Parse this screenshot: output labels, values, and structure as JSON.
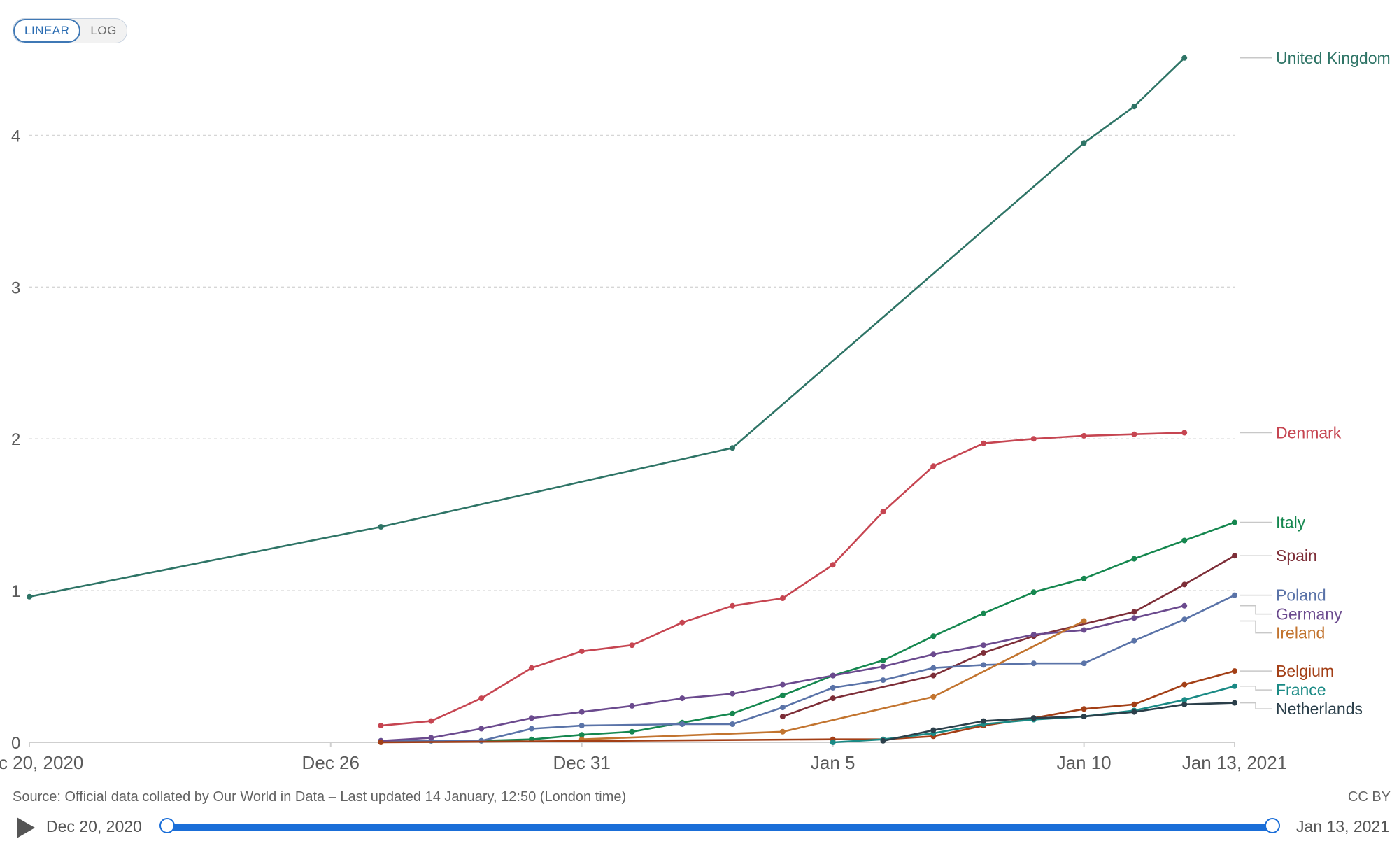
{
  "controls": {
    "linear_label": "LINEAR",
    "log_label": "LOG",
    "active": "linear"
  },
  "source_text": "Source: Official data collated by Our World in Data – Last updated 14 January, 12:50 (London time)",
  "license_text": "CC BY",
  "timeline": {
    "start_label": "Dec 20, 2020",
    "end_label": "Jan 13, 2021"
  },
  "chart_data": {
    "type": "line",
    "title": "",
    "xlabel": "",
    "ylabel": "",
    "x_domain": [
      "2020-12-20",
      "2021-01-13"
    ],
    "ylim": [
      0,
      4.5
    ],
    "y_ticks": [
      0,
      1,
      2,
      3,
      4
    ],
    "grid": "horizontal-dashed",
    "legend": "right-end-labels",
    "x_ticks": [
      {
        "date": "2020-12-20",
        "label": "Dec 20, 2020"
      },
      {
        "date": "2020-12-26",
        "label": "Dec 26"
      },
      {
        "date": "2020-12-31",
        "label": "Dec 31"
      },
      {
        "date": "2021-01-05",
        "label": "Jan 5"
      },
      {
        "date": "2021-01-10",
        "label": "Jan 10"
      },
      {
        "date": "2021-01-13",
        "label": "Jan 13, 2021"
      }
    ],
    "series": [
      {
        "name": "United Kingdom",
        "color": "#2e7466",
        "points": [
          [
            "2020-12-20",
            0.96
          ],
          [
            "2020-12-27",
            1.42
          ],
          [
            "2021-01-03",
            1.94
          ],
          [
            "2021-01-10",
            3.95
          ],
          [
            "2021-01-11",
            4.19
          ],
          [
            "2021-01-12",
            4.51
          ]
        ]
      },
      {
        "name": "Denmark",
        "color": "#c64551",
        "points": [
          [
            "2020-12-27",
            0.11
          ],
          [
            "2020-12-28",
            0.14
          ],
          [
            "2020-12-29",
            0.29
          ],
          [
            "2020-12-30",
            0.49
          ],
          [
            "2020-12-31",
            0.6
          ],
          [
            "2021-01-01",
            0.64
          ],
          [
            "2021-01-02",
            0.79
          ],
          [
            "2021-01-03",
            0.9
          ],
          [
            "2021-01-04",
            0.95
          ],
          [
            "2021-01-05",
            1.17
          ],
          [
            "2021-01-06",
            1.52
          ],
          [
            "2021-01-07",
            1.82
          ],
          [
            "2021-01-08",
            1.97
          ],
          [
            "2021-01-09",
            2.0
          ],
          [
            "2021-01-10",
            2.02
          ],
          [
            "2021-01-11",
            2.03
          ],
          [
            "2021-01-12",
            2.04
          ]
        ]
      },
      {
        "name": "Italy",
        "color": "#15874f",
        "points": [
          [
            "2020-12-27",
            0.01
          ],
          [
            "2020-12-28",
            0.01
          ],
          [
            "2020-12-29",
            0.01
          ],
          [
            "2020-12-30",
            0.02
          ],
          [
            "2020-12-31",
            0.05
          ],
          [
            "2021-01-01",
            0.07
          ],
          [
            "2021-01-02",
            0.13
          ],
          [
            "2021-01-03",
            0.19
          ],
          [
            "2021-01-04",
            0.31
          ],
          [
            "2021-01-05",
            0.44
          ],
          [
            "2021-01-06",
            0.54
          ],
          [
            "2021-01-07",
            0.7
          ],
          [
            "2021-01-08",
            0.85
          ],
          [
            "2021-01-09",
            0.99
          ],
          [
            "2021-01-10",
            1.08
          ],
          [
            "2021-01-11",
            1.21
          ],
          [
            "2021-01-12",
            1.33
          ],
          [
            "2021-01-13",
            1.45
          ]
        ]
      },
      {
        "name": "Spain",
        "color": "#7d2e38",
        "points": [
          [
            "2021-01-04",
            0.17
          ],
          [
            "2021-01-05",
            0.29
          ],
          [
            "2021-01-07",
            0.44
          ],
          [
            "2021-01-08",
            0.59
          ],
          [
            "2021-01-09",
            0.7
          ],
          [
            "2021-01-11",
            0.86
          ],
          [
            "2021-01-12",
            1.04
          ],
          [
            "2021-01-13",
            1.23
          ]
        ]
      },
      {
        "name": "Poland",
        "color": "#5a73a8",
        "points": [
          [
            "2020-12-27",
            0.01
          ],
          [
            "2020-12-28",
            0.01
          ],
          [
            "2020-12-29",
            0.01
          ],
          [
            "2020-12-30",
            0.09
          ],
          [
            "2020-12-31",
            0.11
          ],
          [
            "2021-01-02",
            0.12
          ],
          [
            "2021-01-03",
            0.12
          ],
          [
            "2021-01-04",
            0.23
          ],
          [
            "2021-01-05",
            0.36
          ],
          [
            "2021-01-06",
            0.41
          ],
          [
            "2021-01-07",
            0.49
          ],
          [
            "2021-01-08",
            0.51
          ],
          [
            "2021-01-09",
            0.52
          ],
          [
            "2021-01-10",
            0.52
          ],
          [
            "2021-01-11",
            0.67
          ],
          [
            "2021-01-12",
            0.81
          ],
          [
            "2021-01-13",
            0.97
          ]
        ]
      },
      {
        "name": "Germany",
        "color": "#6b4a8e",
        "points": [
          [
            "2020-12-27",
            0.01
          ],
          [
            "2020-12-28",
            0.03
          ],
          [
            "2020-12-29",
            0.09
          ],
          [
            "2020-12-30",
            0.16
          ],
          [
            "2020-12-31",
            0.2
          ],
          [
            "2021-01-01",
            0.24
          ],
          [
            "2021-01-02",
            0.29
          ],
          [
            "2021-01-03",
            0.32
          ],
          [
            "2021-01-04",
            0.38
          ],
          [
            "2021-01-05",
            0.44
          ],
          [
            "2021-01-06",
            0.5
          ],
          [
            "2021-01-07",
            0.58
          ],
          [
            "2021-01-08",
            0.64
          ],
          [
            "2021-01-09",
            0.71
          ],
          [
            "2021-01-10",
            0.74
          ],
          [
            "2021-01-11",
            0.82
          ],
          [
            "2021-01-12",
            0.9
          ]
        ]
      },
      {
        "name": "Ireland",
        "color": "#c2742f",
        "points": [
          [
            "2020-12-31",
            0.02
          ],
          [
            "2021-01-04",
            0.07
          ],
          [
            "2021-01-07",
            0.3
          ],
          [
            "2021-01-10",
            0.8
          ]
        ]
      },
      {
        "name": "Belgium",
        "color": "#a33f16",
        "points": [
          [
            "2020-12-27",
            0.0
          ],
          [
            "2021-01-05",
            0.02
          ],
          [
            "2021-01-06",
            0.02
          ],
          [
            "2021-01-07",
            0.04
          ],
          [
            "2021-01-08",
            0.11
          ],
          [
            "2021-01-09",
            0.16
          ],
          [
            "2021-01-10",
            0.22
          ],
          [
            "2021-01-11",
            0.25
          ],
          [
            "2021-01-12",
            0.38
          ],
          [
            "2021-01-13",
            0.47
          ]
        ]
      },
      {
        "name": "France",
        "color": "#1a8a85",
        "points": [
          [
            "2021-01-05",
            0.0
          ],
          [
            "2021-01-06",
            0.02
          ],
          [
            "2021-01-07",
            0.06
          ],
          [
            "2021-01-08",
            0.12
          ],
          [
            "2021-01-09",
            0.15
          ],
          [
            "2021-01-10",
            0.17
          ],
          [
            "2021-01-11",
            0.21
          ],
          [
            "2021-01-12",
            0.28
          ],
          [
            "2021-01-13",
            0.37
          ]
        ]
      },
      {
        "name": "Netherlands",
        "color": "#2b3f4a",
        "points": [
          [
            "2021-01-06",
            0.01
          ],
          [
            "2021-01-07",
            0.08
          ],
          [
            "2021-01-08",
            0.14
          ],
          [
            "2021-01-09",
            0.16
          ],
          [
            "2021-01-10",
            0.17
          ],
          [
            "2021-01-11",
            0.2
          ],
          [
            "2021-01-12",
            0.25
          ],
          [
            "2021-01-13",
            0.26
          ]
        ]
      }
    ]
  }
}
